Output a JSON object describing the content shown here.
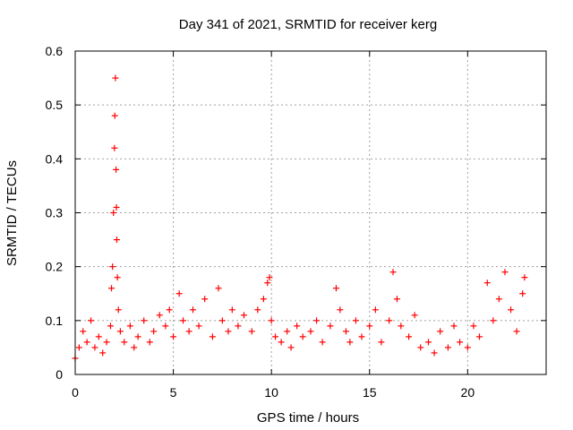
{
  "chart_data": {
    "type": "scatter",
    "title": "Day 341 of 2021, SRMTID for receiver kerg",
    "xlabel": "GPS time / hours",
    "ylabel": "SRMTID / TECUs",
    "xlim": [
      0,
      24
    ],
    "ylim": [
      0,
      0.6
    ],
    "xticks": [
      0,
      5,
      10,
      15,
      20
    ],
    "yticks": [
      0,
      0.1,
      0.2,
      0.3,
      0.4,
      0.5,
      0.6
    ],
    "xtick_labels": [
      "0",
      "5",
      "10",
      "15",
      "20"
    ],
    "ytick_labels": [
      "0",
      "0.1",
      "0.2",
      "0.3",
      "0.4",
      "0.5",
      "0.6"
    ],
    "grid": true,
    "marker": "+",
    "series": [
      {
        "name": "SRMTID",
        "color": "#ff0000",
        "x": [
          0.0,
          0.2,
          0.4,
          0.6,
          0.8,
          1.0,
          1.2,
          1.4,
          1.6,
          1.8,
          1.85,
          1.9,
          1.95,
          2.0,
          2.02,
          2.05,
          2.08,
          2.1,
          2.12,
          2.15,
          2.2,
          2.3,
          2.5,
          2.8,
          3.0,
          3.2,
          3.5,
          3.8,
          4.0,
          4.3,
          4.6,
          4.8,
          5.0,
          5.3,
          5.5,
          5.8,
          6.0,
          6.3,
          6.6,
          7.0,
          7.3,
          7.5,
          7.8,
          8.0,
          8.3,
          8.6,
          9.0,
          9.3,
          9.6,
          9.8,
          9.9,
          10.0,
          10.2,
          10.5,
          10.8,
          11.0,
          11.3,
          11.6,
          12.0,
          12.3,
          12.6,
          13.0,
          13.3,
          13.5,
          13.8,
          14.0,
          14.3,
          14.6,
          15.0,
          15.3,
          15.6,
          16.0,
          16.2,
          16.4,
          16.6,
          17.0,
          17.3,
          17.6,
          18.0,
          18.3,
          18.6,
          19.0,
          19.3,
          19.6,
          20.0,
          20.3,
          20.6,
          21.0,
          21.3,
          21.6,
          21.9,
          22.2,
          22.5,
          22.8,
          22.9
        ],
        "y": [
          0.03,
          0.05,
          0.08,
          0.06,
          0.1,
          0.05,
          0.07,
          0.04,
          0.06,
          0.09,
          0.16,
          0.2,
          0.3,
          0.42,
          0.48,
          0.55,
          0.38,
          0.31,
          0.25,
          0.18,
          0.12,
          0.08,
          0.06,
          0.09,
          0.05,
          0.07,
          0.1,
          0.06,
          0.08,
          0.11,
          0.09,
          0.12,
          0.07,
          0.15,
          0.1,
          0.08,
          0.12,
          0.09,
          0.14,
          0.07,
          0.16,
          0.1,
          0.08,
          0.12,
          0.09,
          0.11,
          0.08,
          0.12,
          0.14,
          0.17,
          0.18,
          0.1,
          0.07,
          0.06,
          0.08,
          0.05,
          0.09,
          0.07,
          0.08,
          0.1,
          0.06,
          0.09,
          0.16,
          0.12,
          0.08,
          0.06,
          0.1,
          0.07,
          0.09,
          0.12,
          0.06,
          0.1,
          0.19,
          0.14,
          0.09,
          0.07,
          0.11,
          0.05,
          0.06,
          0.04,
          0.08,
          0.05,
          0.09,
          0.06,
          0.05,
          0.09,
          0.07,
          0.17,
          0.1,
          0.14,
          0.19,
          0.12,
          0.08,
          0.15,
          0.18
        ]
      }
    ]
  }
}
